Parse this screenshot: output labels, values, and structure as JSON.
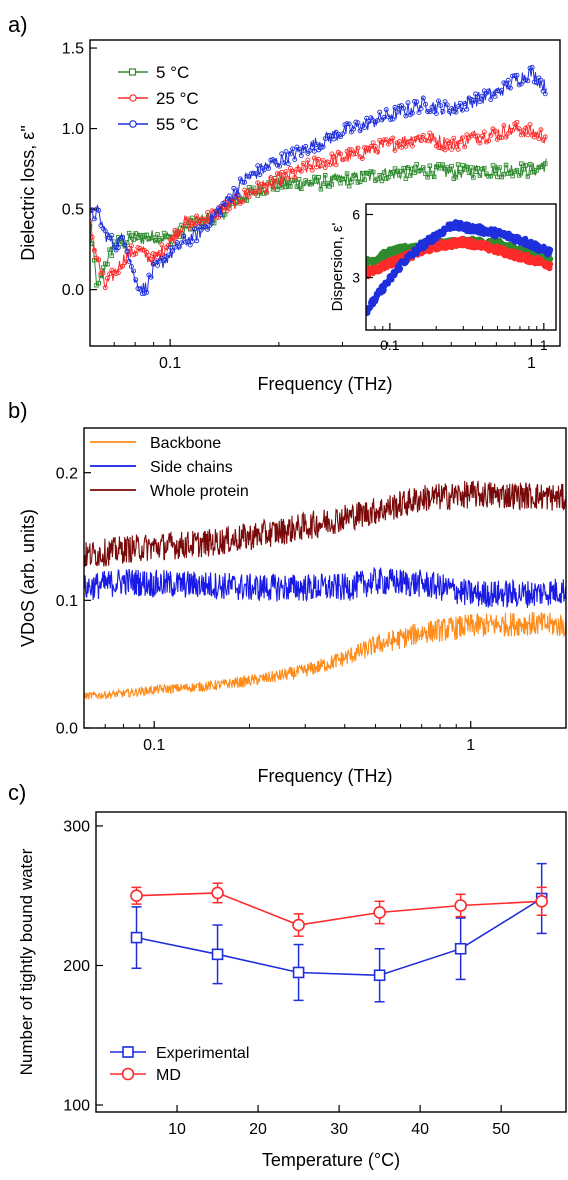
{
  "panels": [
    {
      "label": "a)",
      "chart_data": {
        "type": "line",
        "xscale": "log",
        "xlim": [
          0.06,
          1.2
        ],
        "ylim": [
          -0.35,
          1.55
        ],
        "xticks": [
          0.1,
          1
        ],
        "xtick_labels": [
          "0.1",
          "1"
        ],
        "yticks": [
          0,
          0.5,
          1.0,
          1.5
        ],
        "ytick_labels": [
          "0.0",
          "0.5",
          "1.0",
          "1.5"
        ],
        "xlabel": "Frequency (THz)",
        "ylabel": "Dielectric loss, ε\"",
        "legend_position": "top-left",
        "series": [
          {
            "name": "5 °C",
            "color": "#2e8b2e",
            "marker": "square",
            "x": [
              0.06,
              0.063,
              0.066,
              0.07,
              0.075,
              0.08,
              0.085,
              0.09,
              0.1,
              0.11,
              0.12,
              0.14,
              0.16,
              0.18,
              0.2,
              0.25,
              0.3,
              0.4,
              0.5,
              0.6,
              0.7,
              0.8,
              0.9,
              1.0,
              1.1
            ],
            "y": [
              0.38,
              0.0,
              0.15,
              0.28,
              0.3,
              0.32,
              0.32,
              0.33,
              0.32,
              0.38,
              0.42,
              0.48,
              0.58,
              0.63,
              0.66,
              0.66,
              0.68,
              0.72,
              0.74,
              0.73,
              0.74,
              0.74,
              0.75,
              0.74,
              0.78
            ]
          },
          {
            "name": "25 °C",
            "color": "#ff2a2a",
            "marker": "circle",
            "x": [
              0.06,
              0.063,
              0.066,
              0.07,
              0.075,
              0.08,
              0.085,
              0.09,
              0.1,
              0.11,
              0.12,
              0.14,
              0.16,
              0.18,
              0.2,
              0.25,
              0.3,
              0.4,
              0.5,
              0.6,
              0.7,
              0.8,
              0.9,
              1.0,
              1.1
            ],
            "y": [
              0.4,
              0.18,
              0.02,
              0.1,
              0.2,
              0.25,
              0.22,
              0.18,
              0.3,
              0.42,
              0.42,
              0.5,
              0.58,
              0.64,
              0.68,
              0.78,
              0.82,
              0.9,
              0.95,
              0.9,
              0.95,
              0.97,
              1.0,
              0.98,
              0.95
            ]
          },
          {
            "name": "55 °C",
            "color": "#1f2fdc",
            "marker": "circle",
            "x": [
              0.06,
              0.063,
              0.066,
              0.07,
              0.075,
              0.08,
              0.085,
              0.09,
              0.1,
              0.11,
              0.12,
              0.14,
              0.16,
              0.18,
              0.2,
              0.25,
              0.3,
              0.4,
              0.5,
              0.6,
              0.7,
              0.8,
              0.9,
              1.0,
              1.1
            ],
            "y": [
              0.45,
              0.48,
              0.35,
              0.28,
              0.32,
              0.05,
              0.0,
              0.12,
              0.22,
              0.3,
              0.35,
              0.52,
              0.68,
              0.75,
              0.8,
              0.9,
              0.98,
              1.08,
              1.15,
              1.12,
              1.18,
              1.22,
              1.3,
              1.35,
              1.25
            ]
          }
        ],
        "inset": {
          "xscale": "log",
          "xlim": [
            0.07,
            1.2
          ],
          "ylim": [
            0.5,
            6.5
          ],
          "xticks": [
            0.1,
            1
          ],
          "xtick_labels": [
            "0.1",
            "1"
          ],
          "yticks": [
            3,
            6
          ],
          "ytick_labels": [
            "3",
            "6"
          ],
          "ylabel": "Dispersion, ε'",
          "series": [
            {
              "name": "5 °C",
              "color": "#2e8b2e",
              "x": [
                0.07,
                0.1,
                0.15,
                0.2,
                0.3,
                0.5,
                0.7,
                1.0,
                1.1
              ],
              "y": [
                3.7,
                4.2,
                4.5,
                4.6,
                4.7,
                4.6,
                4.3,
                4.0,
                3.9
              ]
            },
            {
              "name": "25 °C",
              "color": "#ff2a2a",
              "x": [
                0.07,
                0.1,
                0.15,
                0.2,
                0.3,
                0.5,
                0.7,
                1.0,
                1.1
              ],
              "y": [
                3.2,
                3.7,
                4.2,
                4.5,
                4.7,
                4.3,
                4.0,
                3.7,
                3.6
              ]
            },
            {
              "name": "55 °C",
              "color": "#1f2fdc",
              "x": [
                0.07,
                0.09,
                0.12,
                0.16,
                0.2,
                0.25,
                0.3,
                0.5,
                0.7,
                1.0,
                1.1
              ],
              "y": [
                1.4,
                2.5,
                3.7,
                4.5,
                5.0,
                5.5,
                5.4,
                5.1,
                4.8,
                4.3,
                4.2
              ]
            }
          ]
        }
      }
    },
    {
      "label": "b)",
      "chart_data": {
        "type": "line",
        "xscale": "log",
        "xlim": [
          0.06,
          2.0
        ],
        "ylim": [
          0.0,
          0.235
        ],
        "xticks": [
          0.1,
          1
        ],
        "xtick_labels": [
          "0.1",
          "1"
        ],
        "yticks": [
          0.0,
          0.1,
          0.2
        ],
        "ytick_labels": [
          "0.0",
          "0.1",
          "0.2"
        ],
        "xlabel": "Frequency (THz)",
        "ylabel": "VDoS (arb. units)",
        "legend_position": "top-left",
        "series": [
          {
            "name": "Backbone",
            "color": "#ff8c1a",
            "x": [
              0.06,
              0.08,
              0.1,
              0.15,
              0.2,
              0.3,
              0.4,
              0.5,
              0.7,
              1.0,
              1.5,
              2.0
            ],
            "y": [
              0.025,
              0.027,
              0.03,
              0.033,
              0.037,
              0.045,
              0.055,
              0.065,
              0.075,
              0.08,
              0.082,
              0.08
            ]
          },
          {
            "name": "Side chains",
            "color": "#1a1ae6",
            "x": [
              0.06,
              0.08,
              0.1,
              0.15,
              0.2,
              0.3,
              0.4,
              0.5,
              0.7,
              1.0,
              1.5,
              2.0
            ],
            "y": [
              0.11,
              0.115,
              0.113,
              0.112,
              0.11,
              0.11,
              0.11,
              0.115,
              0.113,
              0.105,
              0.105,
              0.108
            ]
          },
          {
            "name": "Whole protein",
            "color": "#7a0a0a",
            "x": [
              0.06,
              0.08,
              0.1,
              0.15,
              0.2,
              0.3,
              0.4,
              0.5,
              0.7,
              1.0,
              1.5,
              2.0
            ],
            "y": [
              0.135,
              0.14,
              0.142,
              0.145,
              0.15,
              0.158,
              0.165,
              0.17,
              0.18,
              0.183,
              0.182,
              0.18
            ]
          }
        ]
      }
    },
    {
      "label": "c)",
      "chart_data": {
        "type": "line",
        "xscale": "linear",
        "xlim": [
          0,
          58
        ],
        "ylim": [
          95,
          310
        ],
        "xticks": [
          10,
          20,
          30,
          40,
          50
        ],
        "xtick_labels": [
          "10",
          "20",
          "30",
          "40",
          "50"
        ],
        "yticks": [
          100,
          200,
          300
        ],
        "ytick_labels": [
          "100",
          "200",
          "300"
        ],
        "xlabel": "Temperature (°C)",
        "ylabel": "Number of tightly bound water",
        "legend_position": "bottom-left",
        "series": [
          {
            "name": "Experimental",
            "color": "#1f2fdc",
            "marker": "square",
            "x": [
              5,
              15,
              25,
              35,
              45,
              55
            ],
            "y": [
              220,
              208,
              195,
              193,
              212,
              248
            ],
            "err": [
              22,
              21,
              20,
              19,
              22,
              25
            ]
          },
          {
            "name": "MD",
            "color": "#ff2a2a",
            "marker": "circle",
            "x": [
              5,
              15,
              25,
              35,
              45,
              55
            ],
            "y": [
              250,
              252,
              229,
              238,
              243,
              246
            ],
            "err": [
              6,
              7,
              8,
              8,
              8,
              10
            ]
          }
        ]
      }
    }
  ]
}
